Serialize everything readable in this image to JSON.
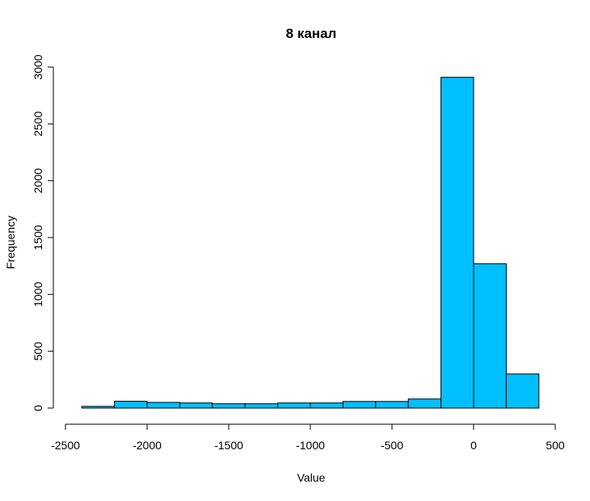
{
  "chart_data": {
    "type": "bar",
    "title": "8  канал",
    "xlabel": "Value",
    "ylabel": "Frequency",
    "xlim": [
      -2500,
      500
    ],
    "ylim": [
      0,
      3000
    ],
    "x_ticks": [
      -2500,
      -2000,
      -1500,
      -1000,
      -500,
      0,
      500
    ],
    "y_ticks": [
      0,
      500,
      1000,
      1500,
      2000,
      2500,
      3000
    ],
    "bar_color": "#00BFFF",
    "bins": [
      {
        "start": -2400,
        "end": -2200,
        "value": 15
      },
      {
        "start": -2200,
        "end": -2000,
        "value": 60
      },
      {
        "start": -2000,
        "end": -1800,
        "value": 50
      },
      {
        "start": -1800,
        "end": -1600,
        "value": 45
      },
      {
        "start": -1600,
        "end": -1400,
        "value": 38
      },
      {
        "start": -1400,
        "end": -1200,
        "value": 38
      },
      {
        "start": -1200,
        "end": -1000,
        "value": 45
      },
      {
        "start": -1000,
        "end": -800,
        "value": 45
      },
      {
        "start": -800,
        "end": -600,
        "value": 58
      },
      {
        "start": -600,
        "end": -400,
        "value": 58
      },
      {
        "start": -400,
        "end": -200,
        "value": 80
      },
      {
        "start": -200,
        "end": 0,
        "value": 2910
      },
      {
        "start": 0,
        "end": 200,
        "value": 1270
      },
      {
        "start": 200,
        "end": 400,
        "value": 300
      }
    ]
  }
}
